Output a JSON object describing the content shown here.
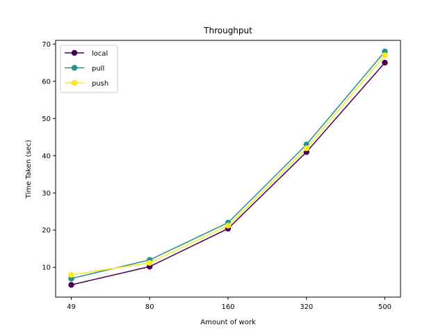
{
  "chart_data": {
    "type": "line",
    "title": "Throughput",
    "xlabel": "Amount of work",
    "ylabel": "Time Taken (sec)",
    "categories": [
      "49",
      "80",
      "160",
      "320",
      "500"
    ],
    "ylim": [
      2.0,
      71.0
    ],
    "yticks": [
      10,
      20,
      30,
      40,
      50,
      60,
      70
    ],
    "grid": false,
    "legend_position": "top-left",
    "series": [
      {
        "name": "local",
        "color": "#440154",
        "values": [
          5.3,
          10.2,
          20.4,
          41.0,
          65.0
        ]
      },
      {
        "name": "pull",
        "color": "#21918c",
        "values": [
          7.0,
          12.0,
          22.0,
          43.0,
          68.0
        ]
      },
      {
        "name": "push",
        "color": "#fde725",
        "values": [
          8.0,
          11.2,
          21.2,
          42.0,
          67.0
        ]
      }
    ]
  }
}
